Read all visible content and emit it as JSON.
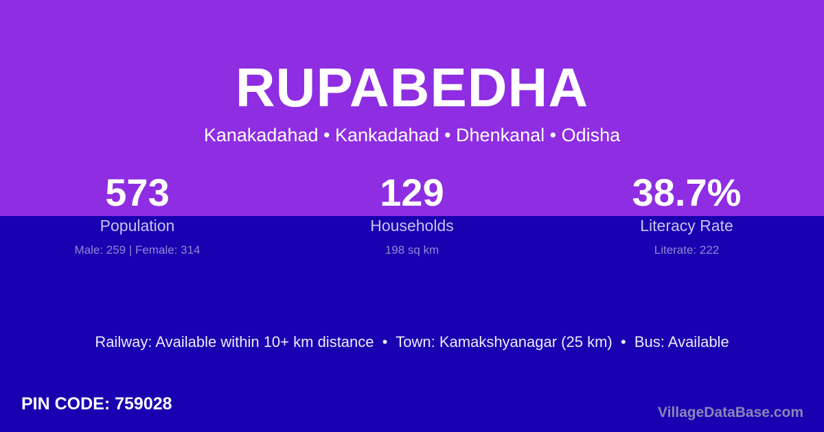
{
  "colors": {
    "top_band": "#8e2de2",
    "bottom_band": "#1a00b0"
  },
  "title": "RUPABEDHA",
  "subtitle": "Kanakadahad • Kankadahad • Dhenkanal • Odisha",
  "stats": [
    {
      "value": "573",
      "label": "Population",
      "detail": "Male: 259 | Female: 314"
    },
    {
      "value": "129",
      "label": "Households",
      "detail": "198 sq km"
    },
    {
      "value": "38.7%",
      "label": "Literacy Rate",
      "detail": "Literate: 222"
    }
  ],
  "info_line": "Railway: Available within 10+ km distance  •  Town: Kamakshyanagar (25 km)  •  Bus: Available",
  "pin_code": "PIN CODE: 759028",
  "watermark": "VillageDataBase.com"
}
